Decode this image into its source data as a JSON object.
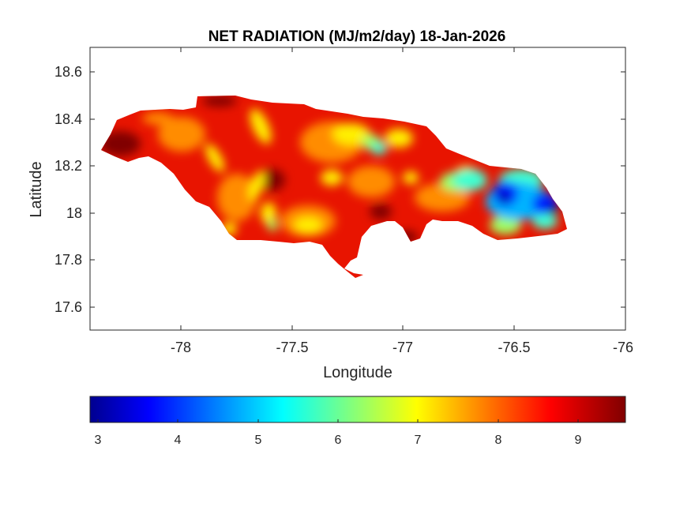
{
  "map": {
    "title": "NET RADIATION (MJ/m2/day) 18-Jan-2026",
    "xlabel": "Longitude",
    "ylabel": "Latitude",
    "x_ticks": [
      "-78",
      "-77.5",
      "-77",
      "-76.5",
      "-76"
    ],
    "y_ticks": [
      "18.6",
      "18.4",
      "18.2",
      "18",
      "17.8",
      "17.6"
    ],
    "colorbar": {
      "ticks": [
        "3",
        "4",
        "5",
        "6",
        "7",
        "8",
        "9"
      ],
      "colormap": "jet"
    }
  },
  "colors": {
    "dark_red": "#800000",
    "red": "#e00000",
    "orange_red": "#ff3a00",
    "orange": "#ff8c00",
    "yellow": "#ffef00",
    "light_green": "#9fff60",
    "cyan": "#3fffd0",
    "sky": "#00b4ff",
    "blue": "#0020ff",
    "dark_blue": "#000090"
  }
}
